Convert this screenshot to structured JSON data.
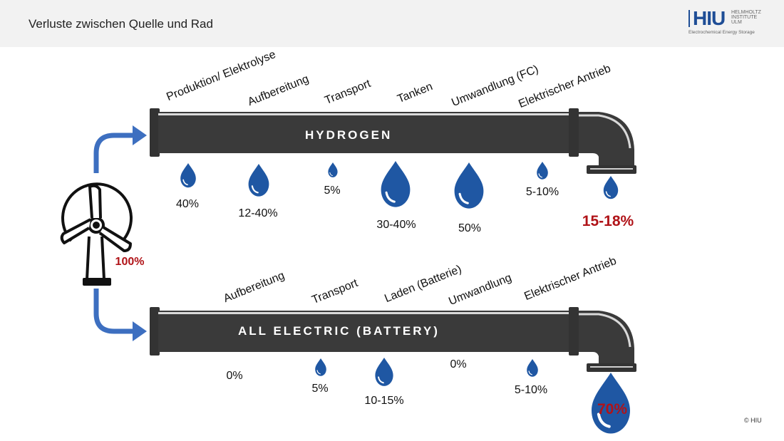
{
  "header": {
    "title": "Verluste zwischen Quelle und Rad"
  },
  "logo": {
    "text": "HIU",
    "line1": "HELMHOLTZ",
    "line2": "INSTITUTE",
    "line3": "ULM",
    "subtitle": "Electrochemical Energy Storage"
  },
  "source": {
    "percent": "100%"
  },
  "hydrogen": {
    "pipe_label": "HYDROGEN",
    "steps": [
      {
        "label": "Produktion/ Elektrolyse",
        "loss": "40%"
      },
      {
        "label": "Aufbereitung",
        "loss": "12-40%"
      },
      {
        "label": "Transport",
        "loss": "5%"
      },
      {
        "label": "Tanken",
        "loss": "30-40%"
      },
      {
        "label": "Umwandlung (FC)",
        "loss": "50%"
      },
      {
        "label": "Elektrischer Antrieb",
        "loss": "5-10%"
      }
    ],
    "result": "15-18%"
  },
  "battery": {
    "pipe_label": "ALL ELECTRIC (BATTERY)",
    "steps": [
      {
        "label": "Aufbereitung",
        "loss": "0%"
      },
      {
        "label": "Transport",
        "loss": "5%"
      },
      {
        "label": "Laden (Batterie)",
        "loss": "10-15%"
      },
      {
        "label": "Umwandlung",
        "loss": "0%"
      },
      {
        "label": "Elektrischer Antrieb",
        "loss": "5-10%"
      }
    ],
    "result": "70%"
  },
  "footer": {
    "copyright": "© HIU"
  },
  "colors": {
    "pipe": "#3a3a3a",
    "drop": "#1f57a3",
    "arrow": "#3d6fc0",
    "highlight": "#b01318"
  }
}
